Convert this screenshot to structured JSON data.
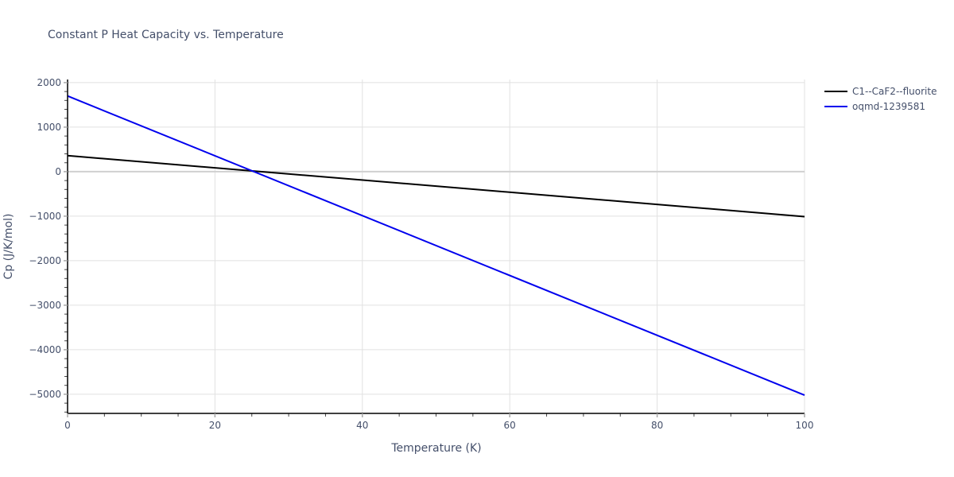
{
  "chart_data": {
    "type": "line",
    "title": "Constant P Heat Capacity vs. Temperature",
    "xlabel": "Temperature (K)",
    "ylabel": "Cp (J/K/mol)",
    "xlim": [
      0,
      100
    ],
    "ylim": [
      -5430,
      2070
    ],
    "x_ticks": [
      0,
      20,
      40,
      60,
      80,
      100
    ],
    "y_ticks": [
      -5000,
      -4000,
      -3000,
      -2000,
      -1000,
      0,
      1000,
      2000
    ],
    "x_minor_step": 5,
    "y_minor_step": 200,
    "grid": true,
    "legend_position": "right-top",
    "series": [
      {
        "name": "C1--CaF2--fluorite",
        "color": "#000000",
        "x": [
          0,
          100
        ],
        "y": [
          360,
          -1010
        ]
      },
      {
        "name": "oqmd-1239581",
        "color": "#0000ee",
        "x": [
          0,
          100
        ],
        "y": [
          1700,
          -5020
        ]
      }
    ]
  },
  "labels": {
    "title": "Constant P Heat Capacity vs. Temperature",
    "xlabel": "Temperature (K)",
    "ylabel": "Cp (J/K/mol)"
  }
}
